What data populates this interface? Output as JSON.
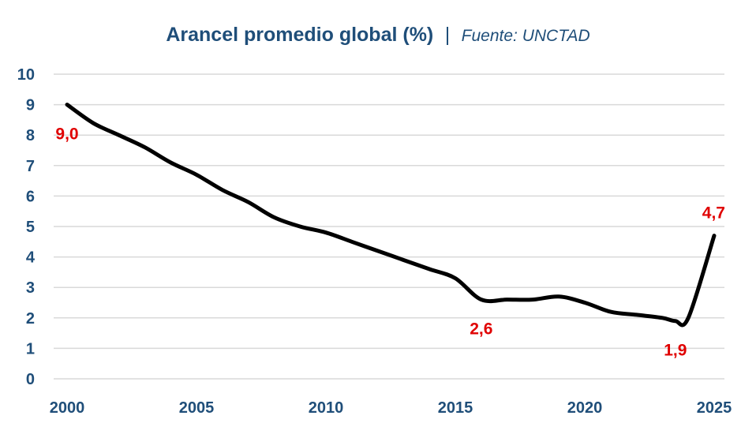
{
  "chart_data": {
    "type": "line",
    "title": "Arancel promedio global (%)",
    "separator": "|",
    "source": "Fuente: UNCTAD",
    "xlabel": "",
    "ylabel": "",
    "xlim": [
      2000,
      2025
    ],
    "ylim": [
      0,
      10
    ],
    "x_ticks": [
      2000,
      2005,
      2010,
      2015,
      2020,
      2025
    ],
    "y_ticks": [
      0,
      1,
      2,
      3,
      4,
      5,
      6,
      7,
      8,
      9,
      10
    ],
    "grid": true,
    "line_color": "#000000",
    "label_color": "#e00000",
    "axis_text_color": "#1f4e79",
    "series": [
      {
        "x": [
          2000,
          2001,
          2002,
          2003,
          2004,
          2005,
          2006,
          2007,
          2008,
          2009,
          2010,
          2011,
          2012,
          2013,
          2014,
          2015,
          2016,
          2017,
          2018,
          2019,
          2020,
          2021,
          2022,
          2023,
          2023.5,
          2024,
          2025
        ],
        "values": [
          9.0,
          8.4,
          8.0,
          7.6,
          7.1,
          6.7,
          6.2,
          5.8,
          5.3,
          5.0,
          4.8,
          4.5,
          4.2,
          3.9,
          3.6,
          3.3,
          2.6,
          2.6,
          2.6,
          2.7,
          2.5,
          2.2,
          2.1,
          2.0,
          1.9,
          2.0,
          4.7
        ]
      }
    ],
    "data_labels": [
      {
        "text": "9,0",
        "x": 2000,
        "y": 9.0,
        "position": "below"
      },
      {
        "text": "2,6",
        "x": 2016,
        "y": 2.6,
        "position": "below"
      },
      {
        "text": "1,9",
        "x": 2023.5,
        "y": 1.9,
        "position": "below"
      },
      {
        "text": "4,7",
        "x": 2025,
        "y": 4.7,
        "position": "above"
      }
    ]
  }
}
